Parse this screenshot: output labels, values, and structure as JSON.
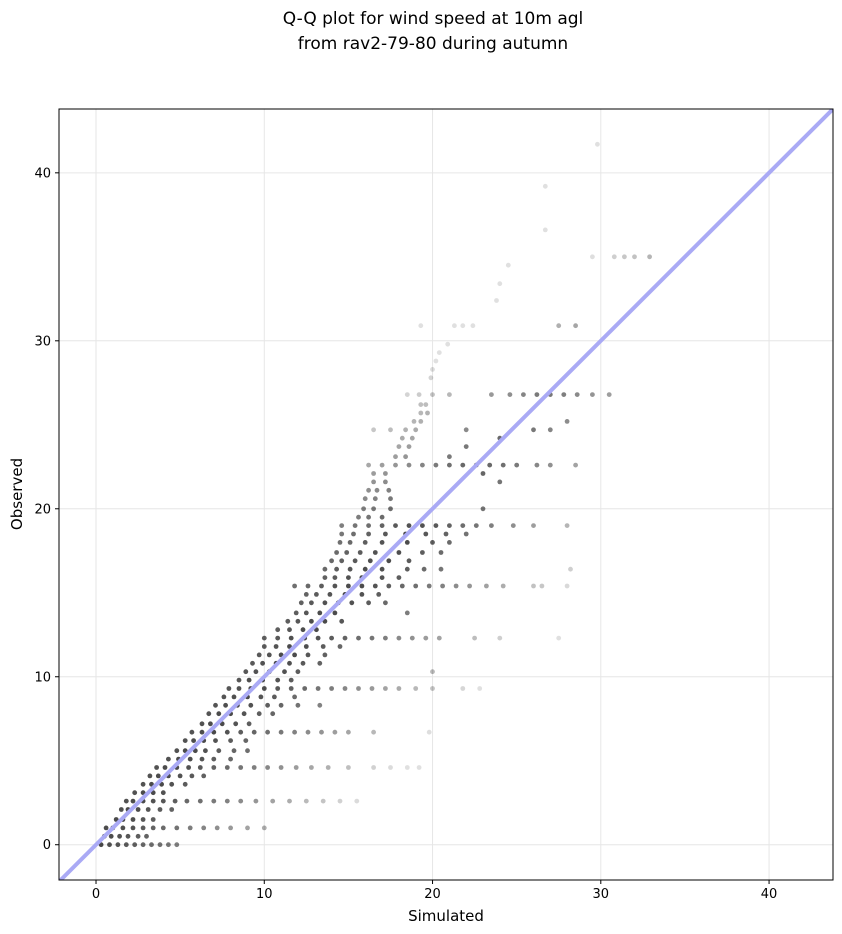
{
  "chart_data": {
    "type": "scatter",
    "title": "Q-Q plot for wind speed at 10m agl",
    "subtitle": "from rav2-79-80 during autumn",
    "xlabel": "Simulated",
    "ylabel": "Observed",
    "xlim": [
      -2.2,
      43.8
    ],
    "ylim": [
      -2.1,
      43.8
    ],
    "xticks": [
      0,
      10,
      20,
      30,
      40
    ],
    "yticks": [
      0,
      10,
      20,
      30,
      40
    ],
    "grid": true,
    "reference_line": {
      "slope": 1,
      "intercept": 0,
      "color": "#aaaaf5"
    },
    "point_color": "#000000",
    "points": [
      [
        0.3,
        0.0
      ],
      [
        0.8,
        0.0
      ],
      [
        1.3,
        0.0
      ],
      [
        1.8,
        0.0
      ],
      [
        2.3,
        0.0
      ],
      [
        2.8,
        0.0
      ],
      [
        3.3,
        0.0
      ],
      [
        3.8,
        0.0
      ],
      [
        4.3,
        0.0
      ],
      [
        4.8,
        0.0
      ],
      [
        0.5,
        0.5
      ],
      [
        0.9,
        0.5
      ],
      [
        1.4,
        0.5
      ],
      [
        1.9,
        0.5
      ],
      [
        2.5,
        0.5
      ],
      [
        3.0,
        0.5
      ],
      [
        0.6,
        1.0
      ],
      [
        1.0,
        1.0
      ],
      [
        1.6,
        1.0
      ],
      [
        2.2,
        1.0
      ],
      [
        2.8,
        1.0
      ],
      [
        3.4,
        1.0
      ],
      [
        4.0,
        1.0
      ],
      [
        4.8,
        1.0
      ],
      [
        5.6,
        1.0
      ],
      [
        6.4,
        1.0
      ],
      [
        7.2,
        1.0
      ],
      [
        8.0,
        1.0
      ],
      [
        9.0,
        1.0
      ],
      [
        10.0,
        1.0
      ],
      [
        1.2,
        1.5
      ],
      [
        1.6,
        1.5
      ],
      [
        2.2,
        1.5
      ],
      [
        2.8,
        1.5
      ],
      [
        3.4,
        1.5
      ],
      [
        1.5,
        2.1
      ],
      [
        1.9,
        2.1
      ],
      [
        2.5,
        2.1
      ],
      [
        3.1,
        2.1
      ],
      [
        3.8,
        2.1
      ],
      [
        4.5,
        2.1
      ],
      [
        1.8,
        2.6
      ],
      [
        2.2,
        2.6
      ],
      [
        2.8,
        2.6
      ],
      [
        3.4,
        2.6
      ],
      [
        4.0,
        2.6
      ],
      [
        4.7,
        2.6
      ],
      [
        5.4,
        2.6
      ],
      [
        6.2,
        2.6
      ],
      [
        7.0,
        2.6
      ],
      [
        7.8,
        2.6
      ],
      [
        8.6,
        2.6
      ],
      [
        9.5,
        2.6
      ],
      [
        10.5,
        2.6
      ],
      [
        11.5,
        2.6
      ],
      [
        12.5,
        2.6
      ],
      [
        13.5,
        2.6
      ],
      [
        14.5,
        2.6
      ],
      [
        15.5,
        2.6
      ],
      [
        2.3,
        3.1
      ],
      [
        2.8,
        3.1
      ],
      [
        3.4,
        3.1
      ],
      [
        4.0,
        3.1
      ],
      [
        2.8,
        3.6
      ],
      [
        3.3,
        3.6
      ],
      [
        3.9,
        3.6
      ],
      [
        4.5,
        3.6
      ],
      [
        5.3,
        3.6
      ],
      [
        3.2,
        4.1
      ],
      [
        3.7,
        4.1
      ],
      [
        4.3,
        4.1
      ],
      [
        5.0,
        4.1
      ],
      [
        5.7,
        4.1
      ],
      [
        6.4,
        4.1
      ],
      [
        3.6,
        4.6
      ],
      [
        4.1,
        4.6
      ],
      [
        4.8,
        4.6
      ],
      [
        5.5,
        4.6
      ],
      [
        6.2,
        4.6
      ],
      [
        7.0,
        4.6
      ],
      [
        7.8,
        4.6
      ],
      [
        8.6,
        4.6
      ],
      [
        9.4,
        4.6
      ],
      [
        10.2,
        4.6
      ],
      [
        11.0,
        4.6
      ],
      [
        11.9,
        4.6
      ],
      [
        12.8,
        4.6
      ],
      [
        13.8,
        4.6
      ],
      [
        15.0,
        4.6
      ],
      [
        16.5,
        4.6
      ],
      [
        17.5,
        4.6
      ],
      [
        18.5,
        4.6
      ],
      [
        19.2,
        4.6
      ],
      [
        4.3,
        5.1
      ],
      [
        4.9,
        5.1
      ],
      [
        5.6,
        5.1
      ],
      [
        6.3,
        5.1
      ],
      [
        7.0,
        5.1
      ],
      [
        8.0,
        5.1
      ],
      [
        4.8,
        5.6
      ],
      [
        5.3,
        5.6
      ],
      [
        5.9,
        5.6
      ],
      [
        6.5,
        5.6
      ],
      [
        7.3,
        5.6
      ],
      [
        8.2,
        5.6
      ],
      [
        9.0,
        5.6
      ],
      [
        5.3,
        6.2
      ],
      [
        5.8,
        6.2
      ],
      [
        6.4,
        6.2
      ],
      [
        7.1,
        6.2
      ],
      [
        8.0,
        6.2
      ],
      [
        8.9,
        6.2
      ],
      [
        5.7,
        6.7
      ],
      [
        6.3,
        6.7
      ],
      [
        7.0,
        6.7
      ],
      [
        7.8,
        6.7
      ],
      [
        8.6,
        6.7
      ],
      [
        9.4,
        6.7
      ],
      [
        10.2,
        6.7
      ],
      [
        11.0,
        6.7
      ],
      [
        11.8,
        6.7
      ],
      [
        12.6,
        6.7
      ],
      [
        13.4,
        6.7
      ],
      [
        14.2,
        6.7
      ],
      [
        15.0,
        6.7
      ],
      [
        16.5,
        6.7
      ],
      [
        19.8,
        6.7
      ],
      [
        6.3,
        7.2
      ],
      [
        6.8,
        7.2
      ],
      [
        7.5,
        7.2
      ],
      [
        8.3,
        7.2
      ],
      [
        9.1,
        7.2
      ],
      [
        6.7,
        7.8
      ],
      [
        7.3,
        7.8
      ],
      [
        8.0,
        7.8
      ],
      [
        8.8,
        7.8
      ],
      [
        9.7,
        7.8
      ],
      [
        10.5,
        7.8
      ],
      [
        7.1,
        8.3
      ],
      [
        7.7,
        8.3
      ],
      [
        8.4,
        8.3
      ],
      [
        9.2,
        8.3
      ],
      [
        10.2,
        8.3
      ],
      [
        11.0,
        8.3
      ],
      [
        12.0,
        8.3
      ],
      [
        13.3,
        8.3
      ],
      [
        7.6,
        8.8
      ],
      [
        8.2,
        8.8
      ],
      [
        9.0,
        8.8
      ],
      [
        9.8,
        8.8
      ],
      [
        10.6,
        8.8
      ],
      [
        11.8,
        8.8
      ],
      [
        7.9,
        9.3
      ],
      [
        8.5,
        9.3
      ],
      [
        9.2,
        9.3
      ],
      [
        10.0,
        9.3
      ],
      [
        10.8,
        9.3
      ],
      [
        11.6,
        9.3
      ],
      [
        12.4,
        9.3
      ],
      [
        13.2,
        9.3
      ],
      [
        14.0,
        9.3
      ],
      [
        14.8,
        9.3
      ],
      [
        15.6,
        9.3
      ],
      [
        16.4,
        9.3
      ],
      [
        17.2,
        9.3
      ],
      [
        18.0,
        9.3
      ],
      [
        19.0,
        9.3
      ],
      [
        20.0,
        9.3
      ],
      [
        21.8,
        9.3
      ],
      [
        22.8,
        9.3
      ],
      [
        8.5,
        9.8
      ],
      [
        9.1,
        9.8
      ],
      [
        9.9,
        9.8
      ],
      [
        10.8,
        9.8
      ],
      [
        11.6,
        9.8
      ],
      [
        8.9,
        10.3
      ],
      [
        9.5,
        10.3
      ],
      [
        10.3,
        10.3
      ],
      [
        11.2,
        10.3
      ],
      [
        12.0,
        10.3
      ],
      [
        20.0,
        10.3
      ],
      [
        9.3,
        10.8
      ],
      [
        9.9,
        10.8
      ],
      [
        10.7,
        10.8
      ],
      [
        11.5,
        10.8
      ],
      [
        12.3,
        10.8
      ],
      [
        13.3,
        10.8
      ],
      [
        9.7,
        11.3
      ],
      [
        10.3,
        11.3
      ],
      [
        11.0,
        11.3
      ],
      [
        11.8,
        11.3
      ],
      [
        12.6,
        11.3
      ],
      [
        13.6,
        11.3
      ],
      [
        10.0,
        11.8
      ],
      [
        10.7,
        11.8
      ],
      [
        11.5,
        11.8
      ],
      [
        12.5,
        11.8
      ],
      [
        13.5,
        11.8
      ],
      [
        14.5,
        11.8
      ],
      [
        10.0,
        12.3
      ],
      [
        10.8,
        12.3
      ],
      [
        11.6,
        12.3
      ],
      [
        12.4,
        12.3
      ],
      [
        13.2,
        12.3
      ],
      [
        14.0,
        12.3
      ],
      [
        14.8,
        12.3
      ],
      [
        15.6,
        12.3
      ],
      [
        16.4,
        12.3
      ],
      [
        17.2,
        12.3
      ],
      [
        18.0,
        12.3
      ],
      [
        18.8,
        12.3
      ],
      [
        19.6,
        12.3
      ],
      [
        20.4,
        12.3
      ],
      [
        22.5,
        12.3
      ],
      [
        24.0,
        12.3
      ],
      [
        27.5,
        12.3
      ],
      [
        10.8,
        12.8
      ],
      [
        11.5,
        12.8
      ],
      [
        12.3,
        12.8
      ],
      [
        13.1,
        12.8
      ],
      [
        11.4,
        13.3
      ],
      [
        12.0,
        13.3
      ],
      [
        12.8,
        13.3
      ],
      [
        13.6,
        13.3
      ],
      [
        14.6,
        13.3
      ],
      [
        11.9,
        13.8
      ],
      [
        12.5,
        13.8
      ],
      [
        13.3,
        13.8
      ],
      [
        14.2,
        13.8
      ],
      [
        18.5,
        13.8
      ],
      [
        12.2,
        14.4
      ],
      [
        12.8,
        14.4
      ],
      [
        13.6,
        14.4
      ],
      [
        14.4,
        14.4
      ],
      [
        15.2,
        14.4
      ],
      [
        16.2,
        14.4
      ],
      [
        17.2,
        14.4
      ],
      [
        12.5,
        14.9
      ],
      [
        13.1,
        14.9
      ],
      [
        13.9,
        14.9
      ],
      [
        14.8,
        14.9
      ],
      [
        15.8,
        14.9
      ],
      [
        16.8,
        14.9
      ],
      [
        11.8,
        15.4
      ],
      [
        12.6,
        15.4
      ],
      [
        13.4,
        15.4
      ],
      [
        14.2,
        15.4
      ],
      [
        15.0,
        15.4
      ],
      [
        15.8,
        15.4
      ],
      [
        16.6,
        15.4
      ],
      [
        17.4,
        15.4
      ],
      [
        18.2,
        15.4
      ],
      [
        19.0,
        15.4
      ],
      [
        19.8,
        15.4
      ],
      [
        20.6,
        15.4
      ],
      [
        21.4,
        15.4
      ],
      [
        22.2,
        15.4
      ],
      [
        23.2,
        15.4
      ],
      [
        24.2,
        15.4
      ],
      [
        26.0,
        15.4
      ],
      [
        26.5,
        15.4
      ],
      [
        28.0,
        15.4
      ],
      [
        13.6,
        15.9
      ],
      [
        14.2,
        15.9
      ],
      [
        15.0,
        15.9
      ],
      [
        15.8,
        15.9
      ],
      [
        17.0,
        15.9
      ],
      [
        18.0,
        15.9
      ],
      [
        13.6,
        16.4
      ],
      [
        14.3,
        16.4
      ],
      [
        15.1,
        16.4
      ],
      [
        16.0,
        16.4
      ],
      [
        17.0,
        16.4
      ],
      [
        18.5,
        16.4
      ],
      [
        19.5,
        16.4
      ],
      [
        20.5,
        16.4
      ],
      [
        28.2,
        16.4
      ],
      [
        14.0,
        16.9
      ],
      [
        14.6,
        16.9
      ],
      [
        15.4,
        16.9
      ],
      [
        16.3,
        16.9
      ],
      [
        17.4,
        16.9
      ],
      [
        18.6,
        16.9
      ],
      [
        14.3,
        17.4
      ],
      [
        14.9,
        17.4
      ],
      [
        15.7,
        17.4
      ],
      [
        16.6,
        17.4
      ],
      [
        18.0,
        17.4
      ],
      [
        19.4,
        17.4
      ],
      [
        20.5,
        17.4
      ],
      [
        14.5,
        18.0
      ],
      [
        15.1,
        18.0
      ],
      [
        16.0,
        18.0
      ],
      [
        17.0,
        18.0
      ],
      [
        18.5,
        18.0
      ],
      [
        20.0,
        18.0
      ],
      [
        21.0,
        18.0
      ],
      [
        14.6,
        18.5
      ],
      [
        15.3,
        18.5
      ],
      [
        16.2,
        18.5
      ],
      [
        17.2,
        18.5
      ],
      [
        18.4,
        18.5
      ],
      [
        19.6,
        18.5
      ],
      [
        20.8,
        18.5
      ],
      [
        22.0,
        18.5
      ],
      [
        14.6,
        19.0
      ],
      [
        15.4,
        19.0
      ],
      [
        16.2,
        19.0
      ],
      [
        17.0,
        19.0
      ],
      [
        17.8,
        19.0
      ],
      [
        18.6,
        19.0
      ],
      [
        19.4,
        19.0
      ],
      [
        20.2,
        19.0
      ],
      [
        21.0,
        19.0
      ],
      [
        21.8,
        19.0
      ],
      [
        22.6,
        19.0
      ],
      [
        23.5,
        19.0
      ],
      [
        24.8,
        19.0
      ],
      [
        26.0,
        19.0
      ],
      [
        28.0,
        19.0
      ],
      [
        15.6,
        19.5
      ],
      [
        16.2,
        19.5
      ],
      [
        17.0,
        19.5
      ],
      [
        15.9,
        20.0
      ],
      [
        16.5,
        20.0
      ],
      [
        17.5,
        20.0
      ],
      [
        23.0,
        20.0
      ],
      [
        16.0,
        20.6
      ],
      [
        16.6,
        20.6
      ],
      [
        17.5,
        20.6
      ],
      [
        16.2,
        21.1
      ],
      [
        16.7,
        21.1
      ],
      [
        17.4,
        21.1
      ],
      [
        16.5,
        21.6
      ],
      [
        17.2,
        21.6
      ],
      [
        24.0,
        21.6
      ],
      [
        16.5,
        22.1
      ],
      [
        17.2,
        22.1
      ],
      [
        23.0,
        22.1
      ],
      [
        16.2,
        22.6
      ],
      [
        17.0,
        22.6
      ],
      [
        17.8,
        22.6
      ],
      [
        18.6,
        22.6
      ],
      [
        19.4,
        22.6
      ],
      [
        20.2,
        22.6
      ],
      [
        21.0,
        22.6
      ],
      [
        21.8,
        22.6
      ],
      [
        22.6,
        22.6
      ],
      [
        23.4,
        22.6
      ],
      [
        24.2,
        22.6
      ],
      [
        25.0,
        22.6
      ],
      [
        26.2,
        22.6
      ],
      [
        27.0,
        22.6
      ],
      [
        28.5,
        22.6
      ],
      [
        17.8,
        23.1
      ],
      [
        18.4,
        23.1
      ],
      [
        21.0,
        23.1
      ],
      [
        18.0,
        23.7
      ],
      [
        18.6,
        23.7
      ],
      [
        22.0,
        23.7
      ],
      [
        18.2,
        24.2
      ],
      [
        18.8,
        24.2
      ],
      [
        24.0,
        24.2
      ],
      [
        16.5,
        24.7
      ],
      [
        17.5,
        24.7
      ],
      [
        18.4,
        24.7
      ],
      [
        19.0,
        24.7
      ],
      [
        22.0,
        24.7
      ],
      [
        26.0,
        24.7
      ],
      [
        27.0,
        24.7
      ],
      [
        18.9,
        25.2
      ],
      [
        19.3,
        25.2
      ],
      [
        28.0,
        25.2
      ],
      [
        19.3,
        25.7
      ],
      [
        19.7,
        25.7
      ],
      [
        19.3,
        26.2
      ],
      [
        19.6,
        26.2
      ],
      [
        18.5,
        26.8
      ],
      [
        19.2,
        26.8
      ],
      [
        20.0,
        26.8
      ],
      [
        21.0,
        26.8
      ],
      [
        23.5,
        26.8
      ],
      [
        24.6,
        26.8
      ],
      [
        25.4,
        26.8
      ],
      [
        26.2,
        26.8
      ],
      [
        27.0,
        26.8
      ],
      [
        27.8,
        26.8
      ],
      [
        28.6,
        26.8
      ],
      [
        29.5,
        26.8
      ],
      [
        30.5,
        26.8
      ],
      [
        19.9,
        27.8
      ],
      [
        20.0,
        28.3
      ],
      [
        20.2,
        28.8
      ],
      [
        20.4,
        29.3
      ],
      [
        20.9,
        29.8
      ],
      [
        19.3,
        30.9
      ],
      [
        21.3,
        30.9
      ],
      [
        21.8,
        30.9
      ],
      [
        22.4,
        30.9
      ],
      [
        27.5,
        30.9
      ],
      [
        28.5,
        30.9
      ],
      [
        23.8,
        32.4
      ],
      [
        24.0,
        33.4
      ],
      [
        24.5,
        34.5
      ],
      [
        26.7,
        36.6
      ],
      [
        26.7,
        39.2
      ],
      [
        29.5,
        35.0
      ],
      [
        30.8,
        35.0
      ],
      [
        31.4,
        35.0
      ],
      [
        32.0,
        35.0
      ],
      [
        32.9,
        35.0
      ],
      [
        29.8,
        41.7
      ]
    ]
  }
}
